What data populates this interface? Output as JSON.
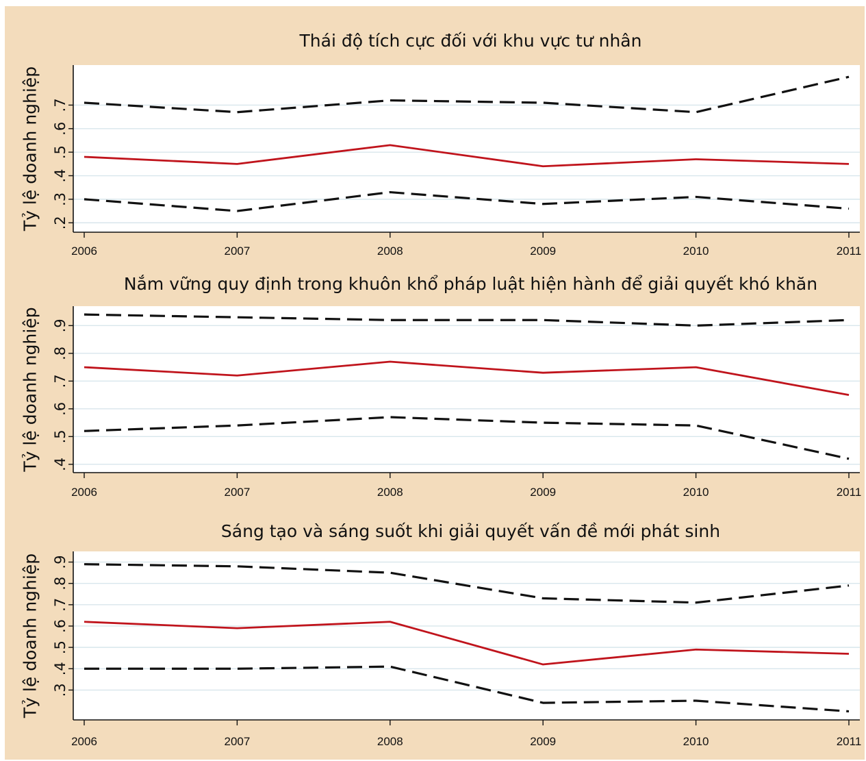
{
  "chart_data": [
    {
      "type": "line",
      "title": "Thái độ tích cực đối với khu vực tư nhân",
      "ylabel": "Tỷ lệ doanh nghiệp",
      "x": [
        2006,
        2007,
        2008,
        2009,
        2010,
        2011
      ],
      "x_tick_labels": [
        "2006",
        "2007",
        "2008",
        "2009",
        "2010",
        "2011"
      ],
      "y_ticks": [
        0.2,
        0.3,
        0.4,
        0.5,
        0.6,
        0.7
      ],
      "y_tick_labels": [
        ".2",
        ".3",
        ".4",
        ".5",
        ".6",
        ".7"
      ],
      "ylim": [
        0.16,
        0.87
      ],
      "grid": true,
      "series": [
        {
          "style": "dashed",
          "color": "#111111",
          "values": [
            0.71,
            0.67,
            0.72,
            0.71,
            0.67,
            0.82
          ]
        },
        {
          "style": "solid",
          "color": "#c0141c",
          "values": [
            0.48,
            0.45,
            0.53,
            0.44,
            0.47,
            0.45
          ]
        },
        {
          "style": "dashed",
          "color": "#111111",
          "values": [
            0.3,
            0.25,
            0.33,
            0.28,
            0.31,
            0.26
          ]
        }
      ]
    },
    {
      "type": "line",
      "title": "Nắm vững quy định trong khuôn khổ pháp luật hiện hành để giải quyết khó khăn",
      "ylabel": "Tỷ lệ doanh nghiệp",
      "x": [
        2006,
        2007,
        2008,
        2009,
        2010,
        2011
      ],
      "x_tick_labels": [
        "2006",
        "2007",
        "2008",
        "2009",
        "2010",
        "2011"
      ],
      "y_ticks": [
        0.4,
        0.5,
        0.6,
        0.7,
        0.8,
        0.9
      ],
      "y_tick_labels": [
        ".4",
        ".5",
        ".6",
        ".7",
        ".8",
        ".9"
      ],
      "ylim": [
        0.37,
        0.97
      ],
      "grid": true,
      "series": [
        {
          "style": "dashed",
          "color": "#111111",
          "values": [
            0.94,
            0.93,
            0.92,
            0.92,
            0.9,
            0.92
          ]
        },
        {
          "style": "solid",
          "color": "#c0141c",
          "values": [
            0.75,
            0.72,
            0.77,
            0.73,
            0.75,
            0.65
          ]
        },
        {
          "style": "dashed",
          "color": "#111111",
          "values": [
            0.52,
            0.54,
            0.57,
            0.55,
            0.54,
            0.42
          ]
        }
      ]
    },
    {
      "type": "line",
      "title": "Sáng tạo và sáng suốt khi giải quyết vấn đề mới phát sinh",
      "ylabel": "Tỷ lệ doanh nghiệp",
      "x": [
        2006,
        2007,
        2008,
        2009,
        2010,
        2011
      ],
      "x_tick_labels": [
        "2006",
        "2007",
        "2008",
        "2009",
        "2010",
        "2011"
      ],
      "y_ticks": [
        0.3,
        0.4,
        0.5,
        0.6,
        0.7,
        0.8,
        0.9
      ],
      "y_tick_labels": [
        ".3",
        ".4",
        ".5",
        ".6",
        ".7",
        ".8",
        ".9"
      ],
      "ylim": [
        0.16,
        0.95
      ],
      "grid": true,
      "series": [
        {
          "style": "dashed",
          "color": "#111111",
          "values": [
            0.89,
            0.88,
            0.85,
            0.73,
            0.71,
            0.79
          ]
        },
        {
          "style": "solid",
          "color": "#c0141c",
          "values": [
            0.62,
            0.59,
            0.62,
            0.42,
            0.49,
            0.47
          ]
        },
        {
          "style": "dashed",
          "color": "#111111",
          "values": [
            0.4,
            0.4,
            0.41,
            0.24,
            0.25,
            0.2
          ]
        }
      ]
    }
  ]
}
